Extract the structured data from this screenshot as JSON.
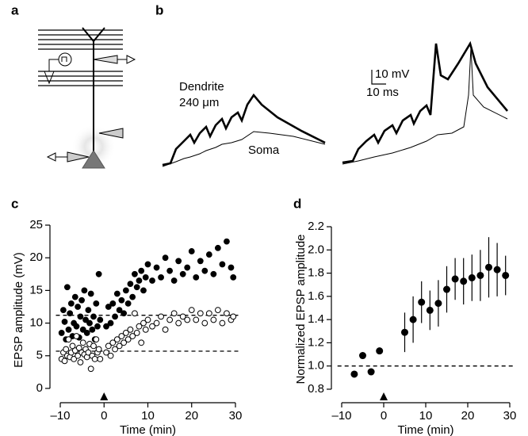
{
  "panel_labels": [
    "a",
    "b",
    "c",
    "d"
  ],
  "panel_b": {
    "dendrite_label": "Dendrite",
    "distance_label": "240 μm",
    "soma_label": "Soma",
    "scale_mv": "10 mV",
    "scale_ms": "10 ms"
  },
  "chart_data": [
    {
      "type": "scatter",
      "xlabel": "Time (min)",
      "ylabel": "EPSP amplitude (mV)",
      "xlim": [
        -11,
        31
      ],
      "ylim": [
        -1,
        25
      ],
      "xticks": [
        {
          "value": -10,
          "label": "–10"
        },
        0,
        10,
        20,
        30
      ],
      "yticks": [
        0,
        5,
        10,
        15,
        20,
        25
      ],
      "reference_lines": [
        11.2,
        5.7
      ],
      "arrow_x": 0,
      "series": [
        {
          "marker": "filled",
          "color": "#000000",
          "x": [
            -9.7,
            -9.3,
            -9,
            -8.7,
            -8.4,
            -8.1,
            -7.8,
            -7.5,
            -7.2,
            -6.9,
            -6.6,
            -6.3,
            -6,
            -5.7,
            -5.4,
            -5.1,
            -4.8,
            -4.5,
            -4.2,
            -3.9,
            -3.6,
            -3.3,
            -3,
            -2.7,
            -2.4,
            -2.1,
            -1.8,
            -1.5,
            -1.2,
            -0.9,
            0.5,
            1,
            1.5,
            2,
            2.5,
            3,
            3.5,
            4,
            4.5,
            5,
            5.5,
            6,
            6.5,
            7,
            7.5,
            8,
            8.5,
            9,
            9.5,
            10,
            11,
            12,
            13,
            14,
            15,
            16,
            17,
            18,
            19,
            20,
            21,
            22,
            23,
            24,
            25,
            26,
            27,
            28,
            29,
            29.5
          ],
          "values": [
            8.5,
            12,
            10.2,
            7.5,
            15.5,
            9,
            11.5,
            13,
            8,
            10,
            14,
            9.5,
            12.5,
            7.8,
            11,
            13.5,
            9,
            15,
            10.5,
            8.5,
            12,
            10,
            14.5,
            9,
            11,
            7.5,
            13,
            9.5,
            17.5,
            10.5,
            9.5,
            12.5,
            10,
            13,
            11,
            14.5,
            12,
            13.5,
            11.5,
            15,
            13,
            16,
            14,
            17.5,
            15.5,
            16.5,
            18,
            15,
            17,
            19,
            16.5,
            18.5,
            17,
            20,
            18,
            16.5,
            19.5,
            17.5,
            18.5,
            21,
            17,
            19.5,
            18,
            20.5,
            17.5,
            21.5,
            19,
            22.5,
            18.5,
            17
          ]
        },
        {
          "marker": "open",
          "color": "#000000",
          "x": [
            -9.7,
            -9.3,
            -9,
            -8.7,
            -8.4,
            -8.1,
            -7.8,
            -7.5,
            -7.2,
            -6.9,
            -6.6,
            -6.3,
            -6,
            -5.7,
            -5.4,
            -5.1,
            -4.8,
            -4.5,
            -4.2,
            -3.9,
            -3.6,
            -3.3,
            -3,
            -2.7,
            -2.4,
            -2.1,
            -1.8,
            -1.5,
            -1.2,
            -0.9,
            0.5,
            1,
            1.5,
            2,
            2.5,
            3,
            3.5,
            4,
            4.5,
            5,
            5.5,
            6,
            6.5,
            7,
            7.5,
            8,
            8.5,
            9,
            9.5,
            10,
            11,
            12,
            13,
            14,
            15,
            16,
            17,
            18,
            19,
            20,
            21,
            22,
            23,
            24,
            25,
            26,
            27,
            28,
            29,
            29.5
          ],
          "values": [
            4.5,
            5.5,
            4.2,
            6,
            5,
            7.5,
            4.8,
            5.5,
            6.5,
            4.5,
            5.8,
            8,
            5,
            6.2,
            4,
            5.5,
            7,
            5.2,
            6,
            4.8,
            5.5,
            6.8,
            3,
            5,
            6.5,
            4.5,
            7.5,
            5.5,
            6,
            4.5,
            5.5,
            6.5,
            5,
            7,
            6,
            7.5,
            6.5,
            8,
            7,
            8.5,
            7.5,
            9,
            8,
            11.5,
            8.5,
            9.5,
            7,
            10,
            9,
            10.5,
            9.5,
            10,
            11,
            9,
            10.5,
            11.5,
            10,
            11,
            10.5,
            12,
            10.5,
            11.5,
            10,
            11.5,
            10.5,
            12,
            10,
            11.5,
            10.5,
            11
          ]
        }
      ]
    },
    {
      "type": "scatter",
      "xlabel": "Time (min)",
      "ylabel": "Normalized EPSP amplitude",
      "xlim": [
        -11,
        31
      ],
      "ylim": [
        0.78,
        2.2
      ],
      "xticks": [
        {
          "value": -10,
          "label": "–10"
        },
        0,
        10,
        20,
        30
      ],
      "yticks": [
        0.8,
        {
          "value": 1,
          "label": "1.0"
        },
        1.2,
        1.4,
        1.6,
        1.8,
        {
          "value": 2,
          "label": "2.0"
        },
        2.2
      ],
      "reference_lines": [
        1
      ],
      "arrow_x": 0,
      "series": [
        {
          "marker": "filled",
          "color": "#000000",
          "x": [
            -7,
            -5,
            -3,
            -1,
            5,
            7,
            9,
            11,
            13,
            15,
            17,
            19,
            21,
            23,
            25,
            27,
            29
          ],
          "values": [
            0.93,
            1.09,
            0.95,
            1.13,
            1.29,
            1.4,
            1.55,
            1.48,
            1.54,
            1.66,
            1.75,
            1.73,
            1.76,
            1.78,
            1.85,
            1.83,
            1.78
          ],
          "errors": [
            null,
            null,
            null,
            null,
            0.17,
            0.2,
            0.18,
            0.17,
            0.2,
            0.2,
            0.18,
            0.2,
            0.2,
            0.22,
            0.26,
            0.23,
            0.17
          ]
        }
      ]
    }
  ]
}
